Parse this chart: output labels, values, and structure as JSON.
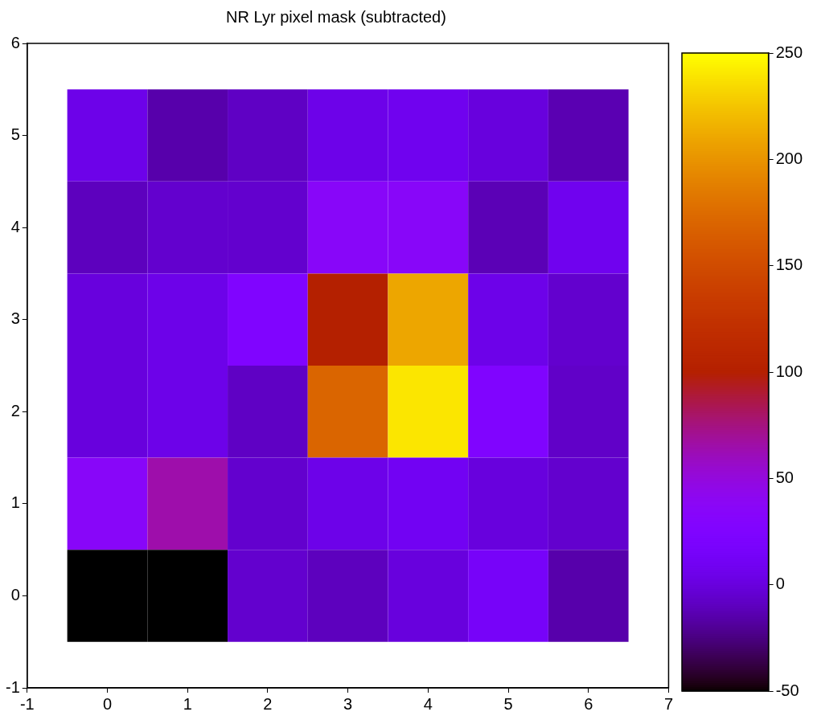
{
  "chart_data": {
    "type": "heatmap",
    "title": "NR Lyr pixel mask (subtracted)",
    "x": [
      0,
      1,
      2,
      3,
      4,
      5,
      6
    ],
    "y": [
      5,
      4,
      3,
      2,
      1,
      0
    ],
    "cells": [
      [
        5,
        -15,
        -8,
        5,
        8,
        0,
        -13
      ],
      [
        -10,
        -5,
        -5,
        35,
        35,
        -12,
        8
      ],
      [
        0,
        5,
        25,
        100,
        210,
        5,
        -5
      ],
      [
        0,
        5,
        -8,
        170,
        240,
        25,
        -7
      ],
      [
        35,
        65,
        -5,
        5,
        10,
        0,
        -5
      ],
      [
        -50,
        -50,
        -5,
        -10,
        0,
        15,
        -15
      ]
    ],
    "xlim": [
      -1,
      7
    ],
    "xticks": [
      -1,
      0,
      1,
      2,
      3,
      4,
      5,
      6,
      7
    ],
    "ylim": [
      -1,
      6
    ],
    "yticks": [
      -1,
      0,
      1,
      2,
      3,
      4,
      5,
      6
    ],
    "clim": [
      -50,
      250
    ],
    "cticks": [
      -50,
      0,
      50,
      100,
      150,
      200,
      250
    ]
  }
}
